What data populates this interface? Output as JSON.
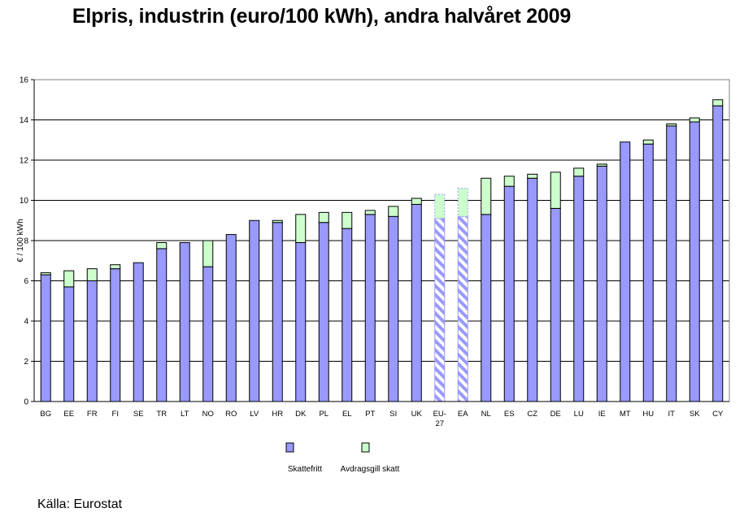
{
  "title": "Elpris, industrin (euro/100 kWh), andra halvåret 2009",
  "source": "Källa: Eurostat",
  "chart_data": {
    "type": "bar",
    "stacked": true,
    "ylabel": "€ / 100 kWh",
    "xlabel": "",
    "ylim": [
      0,
      16
    ],
    "yticks": [
      0,
      2,
      4,
      6,
      8,
      10,
      12,
      14,
      16
    ],
    "grid": true,
    "legend_position": "bottom",
    "categories": [
      {
        "label": "BG",
        "label2": ""
      },
      {
        "label": "EE",
        "label2": ""
      },
      {
        "label": "FR",
        "label2": ""
      },
      {
        "label": "FI",
        "label2": ""
      },
      {
        "label": "SE",
        "label2": ""
      },
      {
        "label": "TR",
        "label2": ""
      },
      {
        "label": "LT",
        "label2": ""
      },
      {
        "label": "NO",
        "label2": ""
      },
      {
        "label": "RO",
        "label2": ""
      },
      {
        "label": "LV",
        "label2": ""
      },
      {
        "label": "HR",
        "label2": ""
      },
      {
        "label": "DK",
        "label2": ""
      },
      {
        "label": "PL",
        "label2": ""
      },
      {
        "label": "EL",
        "label2": ""
      },
      {
        "label": "PT",
        "label2": ""
      },
      {
        "label": "SI",
        "label2": ""
      },
      {
        "label": "UK",
        "label2": ""
      },
      {
        "label": "EU-",
        "label2": "27"
      },
      {
        "label": "EA",
        "label2": ""
      },
      {
        "label": "NL",
        "label2": ""
      },
      {
        "label": "ES",
        "label2": ""
      },
      {
        "label": "CZ",
        "label2": ""
      },
      {
        "label": "DE",
        "label2": ""
      },
      {
        "label": "LU",
        "label2": ""
      },
      {
        "label": "IE",
        "label2": ""
      },
      {
        "label": "MT",
        "label2": ""
      },
      {
        "label": "HU",
        "label2": ""
      },
      {
        "label": "IT",
        "label2": ""
      },
      {
        "label": "SK",
        "label2": ""
      },
      {
        "label": "CY",
        "label2": ""
      }
    ],
    "hatched_categories": [
      "EU-27",
      "EA"
    ],
    "series": [
      {
        "name": "Skattefritt",
        "color": "#9999ff",
        "values": [
          6.3,
          5.7,
          6.0,
          6.6,
          6.9,
          7.6,
          7.9,
          6.7,
          8.3,
          9.0,
          8.9,
          7.9,
          8.9,
          8.6,
          9.3,
          9.2,
          9.8,
          9.1,
          9.2,
          9.3,
          10.7,
          11.1,
          9.6,
          11.2,
          11.7,
          12.9,
          12.8,
          13.7,
          13.9,
          14.7
        ]
      },
      {
        "name": "Avdragsgill skatt",
        "color": "#ccffcc",
        "values": [
          0.1,
          0.8,
          0.6,
          0.2,
          0.0,
          0.3,
          0.0,
          1.3,
          0.0,
          0.0,
          0.1,
          1.4,
          0.5,
          0.8,
          0.2,
          0.5,
          0.3,
          1.2,
          1.4,
          1.8,
          0.5,
          0.2,
          1.8,
          0.4,
          0.1,
          0.0,
          0.2,
          0.1,
          0.2,
          0.3
        ]
      }
    ]
  }
}
